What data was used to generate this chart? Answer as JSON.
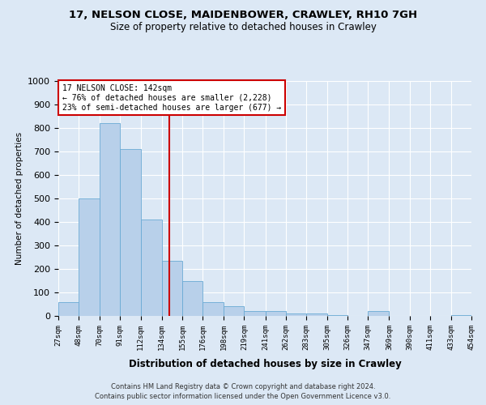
{
  "title1": "17, NELSON CLOSE, MAIDENBOWER, CRAWLEY, RH10 7GH",
  "title2": "Size of property relative to detached houses in Crawley",
  "xlabel": "Distribution of detached houses by size in Crawley",
  "ylabel": "Number of detached properties",
  "footnote1": "Contains HM Land Registry data © Crown copyright and database right 2024.",
  "footnote2": "Contains public sector information licensed under the Open Government Licence v3.0.",
  "annotation_line1": "17 NELSON CLOSE: 142sqm",
  "annotation_line2": "← 76% of detached houses are smaller (2,228)",
  "annotation_line3": "23% of semi-detached houses are larger (677) →",
  "bin_edges": [
    27,
    48,
    70,
    91,
    112,
    134,
    155,
    176,
    198,
    219,
    241,
    262,
    283,
    305,
    326,
    347,
    369,
    390,
    411,
    433,
    454
  ],
  "bar_heights": [
    60,
    500,
    820,
    710,
    410,
    235,
    150,
    60,
    40,
    20,
    20,
    10,
    10,
    5,
    0,
    20,
    0,
    0,
    0,
    5
  ],
  "bar_color": "#b8d0ea",
  "bar_edge_color": "#6aaad4",
  "vline_color": "#cc0000",
  "vline_x": 142,
  "ylim": [
    0,
    1000
  ],
  "yticks": [
    0,
    100,
    200,
    300,
    400,
    500,
    600,
    700,
    800,
    900,
    1000
  ],
  "bg_color": "#dce8f5",
  "grid_color": "#ffffff",
  "annotation_box_color": "#ffffff",
  "annotation_box_edge": "#cc0000"
}
